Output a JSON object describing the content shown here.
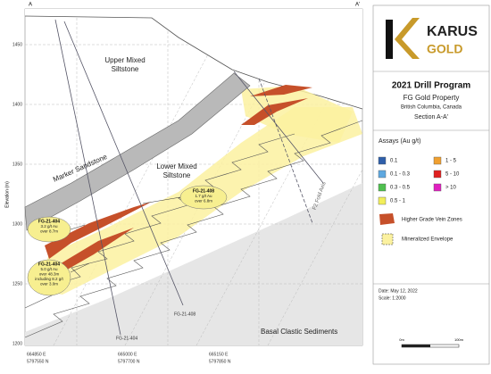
{
  "header": {
    "corner_left": "A",
    "corner_right": "A'"
  },
  "axis": {
    "title": "Elevation (m)",
    "ticks": [
      "1450",
      "1400",
      "1350",
      "1300",
      "1250",
      "1200"
    ]
  },
  "x_labels": [
    {
      "easting": "664850 E",
      "northing": "5797550 N"
    },
    {
      "easting": "665000 E",
      "northing": "5797700 N"
    },
    {
      "easting": "665150 E",
      "northing": "5797850 N"
    }
  ],
  "units": {
    "upper": [
      "Upper Mixed",
      "Siltstone"
    ],
    "lower": [
      "Lower Mixed",
      "Siltstone"
    ],
    "marker": "Marker Sandstone",
    "basal": "Basal Clastic Sediments",
    "fold_axis": "F2 Fold Axis"
  },
  "drill_holes": [
    "FG-21-408",
    "FG-21-404"
  ],
  "callouts": [
    {
      "hole": "FG-21-408",
      "lines": [
        "1.7 g/t Au",
        "over 6.8m"
      ]
    },
    {
      "hole": "FG-21-404",
      "lines": [
        "3.2 g/t Au",
        "over 8.7m"
      ]
    },
    {
      "hole": "FG-21-404",
      "lines": [
        "5.0 g/t Au",
        "over 48.3m",
        "including 8.2 g/t",
        "over 3.0m"
      ]
    }
  ],
  "logo": {
    "name": "KARUS",
    "sub": "GOLD"
  },
  "title_block": {
    "title": "2021 Drill Program",
    "property": "FG Gold Property",
    "location": "British Columbia, Canada",
    "section": "Section A-A'"
  },
  "legend": {
    "title": "Assays (Au g/t)",
    "assays": [
      {
        "label": "0.1",
        "color": "#2f5faa"
      },
      {
        "label": "0.1 - 0.3",
        "color": "#5ea8e0"
      },
      {
        "label": "0.3 - 0.5",
        "color": "#4fc04f"
      },
      {
        "label": "0.5 - 1",
        "color": "#f2ee5a"
      },
      {
        "label": "1 - 5",
        "color": "#f0a030"
      },
      {
        "label": "5 - 10",
        "color": "#e02020"
      },
      {
        "label": "> 10",
        "color": "#e020c0"
      }
    ],
    "vein": "Higher Grade Vein Zones",
    "envelope": "Mineralized Envelope"
  },
  "date": "Date: May 12, 2022",
  "scale": "Scale: 1:2000",
  "scale_bar": [
    "0m",
    "100m"
  ]
}
